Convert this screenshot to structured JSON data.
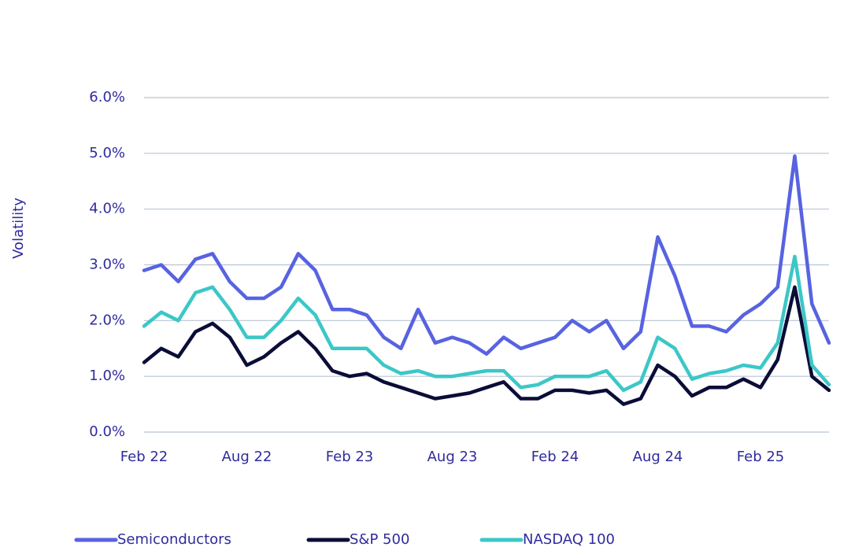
{
  "chart_data": {
    "type": "line",
    "y_label": "Volatility",
    "categories": [
      "Feb 22",
      null,
      null,
      null,
      null,
      null,
      "Aug 22",
      null,
      null,
      null,
      null,
      null,
      "Feb 23",
      null,
      null,
      null,
      null,
      null,
      "Aug 23",
      null,
      null,
      null,
      null,
      null,
      "Feb 24",
      null,
      null,
      null,
      null,
      null,
      "Aug 24",
      null,
      null,
      null,
      null,
      null,
      "Feb 25",
      null,
      null,
      null,
      null
    ],
    "series": [
      {
        "name": "Semiconductors",
        "color": "#5763e0",
        "values": [
          2.9,
          3.0,
          2.7,
          3.1,
          3.2,
          2.7,
          2.4,
          2.4,
          2.6,
          3.2,
          2.9,
          2.2,
          2.2,
          2.1,
          1.7,
          1.5,
          2.2,
          1.6,
          1.7,
          1.6,
          1.4,
          1.7,
          1.5,
          1.6,
          1.7,
          2.0,
          1.8,
          2.0,
          1.5,
          1.8,
          3.5,
          2.8,
          1.9,
          1.9,
          1.8,
          2.1,
          2.3,
          2.6,
          4.95,
          2.3,
          1.6
        ]
      },
      {
        "name": "S&P 500",
        "color": "#0b0d38",
        "values": [
          1.25,
          1.5,
          1.35,
          1.8,
          1.95,
          1.7,
          1.2,
          1.35,
          1.6,
          1.8,
          1.5,
          1.1,
          1.0,
          1.05,
          0.9,
          0.8,
          0.7,
          0.6,
          0.65,
          0.7,
          0.8,
          0.9,
          0.6,
          0.6,
          0.75,
          0.75,
          0.7,
          0.75,
          0.5,
          0.6,
          1.2,
          1.0,
          0.65,
          0.8,
          0.8,
          0.95,
          0.8,
          1.3,
          2.6,
          1.0,
          0.75
        ]
      },
      {
        "name": "NASDAQ 100",
        "color": "#3cc7c7",
        "values": [
          1.9,
          2.15,
          2.0,
          2.5,
          2.6,
          2.2,
          1.7,
          1.7,
          2.0,
          2.4,
          2.1,
          1.5,
          1.5,
          1.5,
          1.2,
          1.05,
          1.1,
          1.0,
          1.0,
          1.05,
          1.1,
          1.1,
          0.8,
          0.85,
          1.0,
          1.0,
          1.0,
          1.1,
          0.75,
          0.9,
          1.7,
          1.5,
          0.95,
          1.05,
          1.1,
          1.2,
          1.15,
          1.6,
          3.15,
          1.2,
          0.85
        ]
      }
    ],
    "ylim": [
      0,
      6
    ],
    "yticks": [
      {
        "value": 0,
        "label": "0.0%"
      },
      {
        "value": 1,
        "label": "1.0%"
      },
      {
        "value": 2,
        "label": "2.0%"
      },
      {
        "value": 3,
        "label": "3.0%"
      },
      {
        "value": 4,
        "label": "4.0%"
      },
      {
        "value": 5,
        "label": "5.0%"
      },
      {
        "value": 6,
        "label": "6.0%"
      }
    ],
    "grid": true,
    "legend": "bottom"
  }
}
